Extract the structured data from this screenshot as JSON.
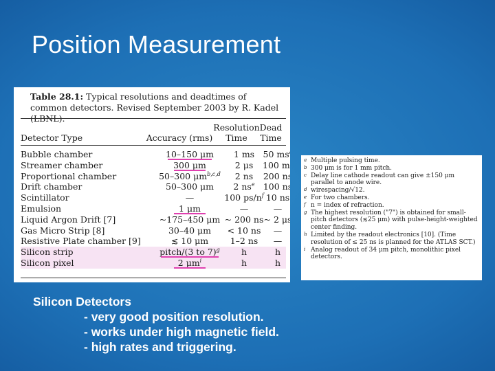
{
  "slide": {
    "title": "Position Measurement"
  },
  "table": {
    "caption_label": "Table 28.1:",
    "caption_text": "Typical resolutions and deadtimes of common detectors. Revised September 2003 by R. Kadel (LBNL).",
    "headers": {
      "type": "Detector Type",
      "accuracy": "Accuracy (rms)",
      "resolution_time": "Resolution Time",
      "dead_time": "Dead Time"
    },
    "rows": [
      {
        "type": "Bubble chamber",
        "accuracy": "10–150 μm",
        "resolution_time": "1 ms",
        "dead_time": "50 ms",
        "dead_sup": "a"
      },
      {
        "type": "Streamer chamber",
        "accuracy": "300 μm",
        "resolution_time": "2 μs",
        "dead_time": "100 ms"
      },
      {
        "type": "Proportional chamber",
        "accuracy": "50–300 μm",
        "acc_sup": "b,c,d",
        "resolution_time": "2 ns",
        "dead_time": "200 ns"
      },
      {
        "type": "Drift chamber",
        "accuracy": "50–300 μm",
        "resolution_time": "2 ns",
        "res_sup": "e",
        "dead_time": "100 ns"
      },
      {
        "type": "Scintillator",
        "accuracy": "—",
        "resolution_time": "100 ps/n",
        "res_sup": "f",
        "dead_time": "10 ns"
      },
      {
        "type": "Emulsion",
        "accuracy": "1 μm",
        "resolution_time": "—",
        "dead_time": "—"
      },
      {
        "type": "Liquid Argon Drift [7]",
        "accuracy": "~175–450 μm",
        "resolution_time": "~ 200 ns",
        "dead_time": "~ 2 μs"
      },
      {
        "type": "Gas Micro Strip [8]",
        "accuracy": "30–40 μm",
        "resolution_time": "< 10 ns",
        "dead_time": "—"
      },
      {
        "type": "Resistive Plate chamber [9]",
        "accuracy": "≲ 10 μm",
        "resolution_time": "1–2 ns",
        "dead_time": "—"
      },
      {
        "type": "Silicon strip",
        "accuracy": "pitch/(3 to 7)",
        "acc_sup": "g",
        "resolution_time": "h",
        "dead_time": "h"
      },
      {
        "type": "Silicon pixel",
        "accuracy": "2 μm",
        "acc_sup": "i",
        "resolution_time": "h",
        "dead_time": "h"
      }
    ]
  },
  "footnotes": [
    {
      "key": "a",
      "text": "Multiple pulsing time."
    },
    {
      "key": "b",
      "text": "300 μm is for 1 mm pitch."
    },
    {
      "key": "c",
      "text": "Delay line cathode readout can give ±150 μm parallel to anode wire."
    },
    {
      "key": "d",
      "text": "wirespacing/√12."
    },
    {
      "key": "e",
      "text": "For two chambers."
    },
    {
      "key": "f",
      "text": "n = index of refraction."
    },
    {
      "key": "g",
      "text": "The highest resolution (\"7\") is obtained for small-pitch detectors (≲25 μm) with pulse-height-weighted center finding."
    },
    {
      "key": "h",
      "text": "Limited by the readout electronics [10]. (Time resolution of ≤ 25 ns is planned for the ATLAS SCT.)"
    },
    {
      "key": "i",
      "text": "Analog readout of 34 μm pitch, monolithic pixel detectors."
    }
  ],
  "bullets": {
    "heading": "Silicon Detectors",
    "items": [
      "- very good position resolution.",
      "- works under high magnetic field.",
      "- high rates and triggering."
    ]
  },
  "colors": {
    "background": "#1d6fb5",
    "highlight_rows": "#f7e3f3",
    "underline_marks": "#e040b0"
  }
}
